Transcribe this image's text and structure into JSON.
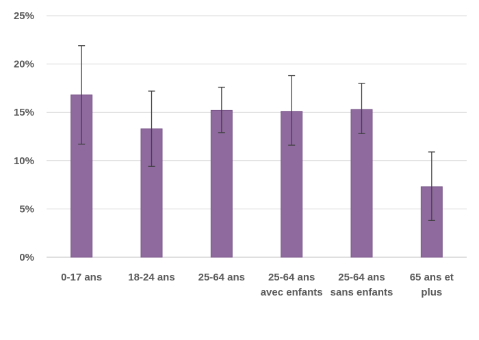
{
  "chart_data": {
    "type": "bar",
    "categories": [
      [
        "0-17 ans"
      ],
      [
        "18-24 ans"
      ],
      [
        "25-64 ans"
      ],
      [
        "25-64 ans",
        "avec enfants"
      ],
      [
        "25-64 ans",
        "sans enfants"
      ],
      [
        "65 ans et",
        "plus"
      ]
    ],
    "values": [
      16.8,
      13.3,
      15.2,
      15.1,
      15.3,
      7.3
    ],
    "error_low": [
      11.7,
      9.4,
      12.9,
      11.6,
      12.8,
      3.8
    ],
    "error_high": [
      21.9,
      17.2,
      17.6,
      18.8,
      18.0,
      10.9
    ],
    "ylim": [
      0,
      25
    ],
    "yticks": [
      0,
      5,
      10,
      15,
      20,
      25
    ],
    "ytick_labels": [
      "0%",
      "5%",
      "10%",
      "15%",
      "20%",
      "25%"
    ],
    "grid": true,
    "bar_color": "#8E6A9E",
    "bar_edge_color": "#7A5689",
    "error_color": "#404040",
    "grid_color": "#D9D9D9",
    "axis_color": "#BFBFBF"
  }
}
